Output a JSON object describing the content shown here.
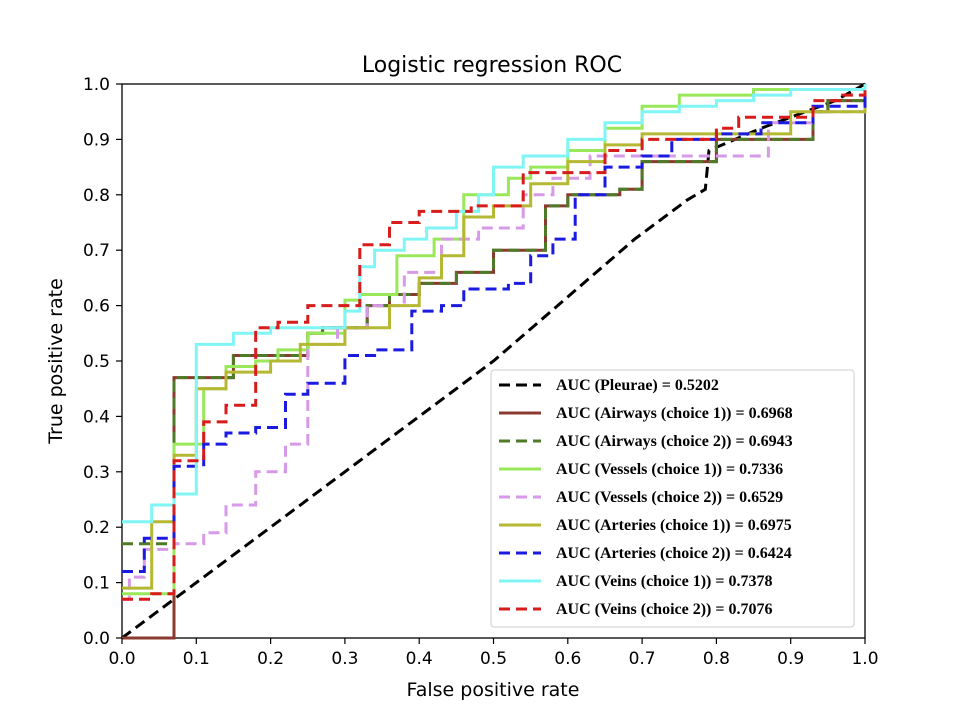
{
  "chart_data": {
    "type": "line",
    "title": "Logistic regression ROC",
    "xlabel": "False positive rate",
    "ylabel": "True positive rate",
    "xlim": [
      0.0,
      1.0
    ],
    "ylim": [
      0.0,
      1.0
    ],
    "xticks": [
      "0.0",
      "0.1",
      "0.2",
      "0.3",
      "0.4",
      "0.5",
      "0.6",
      "0.7",
      "0.8",
      "0.9",
      "1.0"
    ],
    "yticks": [
      "0.0",
      "0.1",
      "0.2",
      "0.3",
      "0.4",
      "0.5",
      "0.6",
      "0.7",
      "0.8",
      "0.9",
      "1.0"
    ],
    "grid": false,
    "legend_position": "lower-right",
    "series": [
      {
        "name": "AUC (Pleurae) = 0.5202",
        "color": "#000000",
        "dash": "dashed",
        "x": [
          0.0,
          0.5,
          0.69,
          0.75,
          0.76,
          0.785,
          0.79,
          0.86,
          0.92,
          0.96,
          1.0
        ],
        "y": [
          0.0,
          0.5,
          0.72,
          0.78,
          0.79,
          0.81,
          0.88,
          0.92,
          0.95,
          0.97,
          1.0
        ]
      },
      {
        "name": "AUC (Airways (choice 1)) = 0.6968",
        "color": "#8b3a2f",
        "dash": "solid",
        "x": [
          0.0,
          0.07,
          0.07,
          0.15,
          0.15,
          0.25,
          0.27,
          0.33,
          0.36,
          0.4,
          0.45,
          0.5,
          0.57,
          0.6,
          0.67,
          0.7,
          0.8,
          0.93,
          0.95,
          1.0
        ],
        "y": [
          0.0,
          0.0,
          0.47,
          0.48,
          0.51,
          0.55,
          0.56,
          0.6,
          0.62,
          0.64,
          0.66,
          0.7,
          0.78,
          0.8,
          0.81,
          0.86,
          0.9,
          0.95,
          0.97,
          1.0
        ],
        "drawstyle": "steps-post"
      },
      {
        "name": "AUC (Airways (choice 2)) = 0.6943",
        "color": "#4f7a28",
        "dash": "dashed",
        "x": [
          0.0,
          0.07,
          0.07,
          0.15,
          0.15,
          0.25,
          0.27,
          0.33,
          0.36,
          0.4,
          0.45,
          0.5,
          0.57,
          0.6,
          0.67,
          0.7,
          0.8,
          0.93,
          0.95,
          1.0
        ],
        "y": [
          0.17,
          0.17,
          0.47,
          0.48,
          0.51,
          0.55,
          0.56,
          0.6,
          0.62,
          0.64,
          0.66,
          0.7,
          0.78,
          0.8,
          0.81,
          0.86,
          0.9,
          0.95,
          0.97,
          1.0
        ],
        "drawstyle": "steps-post"
      },
      {
        "name": "AUC (Vessels (choice 1)) = 0.7336",
        "color": "#99e85a",
        "dash": "solid",
        "x": [
          0.0,
          0.04,
          0.07,
          0.07,
          0.11,
          0.11,
          0.14,
          0.18,
          0.21,
          0.25,
          0.3,
          0.32,
          0.37,
          0.42,
          0.46,
          0.52,
          0.55,
          0.6,
          0.65,
          0.7,
          0.75,
          0.8,
          0.85,
          0.9,
          1.0
        ],
        "y": [
          0.08,
          0.08,
          0.18,
          0.35,
          0.42,
          0.45,
          0.49,
          0.5,
          0.52,
          0.55,
          0.61,
          0.62,
          0.69,
          0.72,
          0.8,
          0.83,
          0.85,
          0.88,
          0.92,
          0.96,
          0.98,
          0.98,
          0.99,
          0.99,
          1.0
        ],
        "drawstyle": "steps-post"
      },
      {
        "name": "AUC (Vessels (choice 2)) = 0.6529",
        "color": "#d79ae8",
        "dash": "dashed",
        "x": [
          0.0,
          0.01,
          0.03,
          0.07,
          0.07,
          0.11,
          0.14,
          0.18,
          0.22,
          0.25,
          0.29,
          0.33,
          0.38,
          0.43,
          0.48,
          0.54,
          0.58,
          0.63,
          0.7,
          0.8,
          0.87,
          0.93,
          1.0
        ],
        "y": [
          0.07,
          0.11,
          0.16,
          0.16,
          0.17,
          0.19,
          0.24,
          0.3,
          0.35,
          0.53,
          0.56,
          0.6,
          0.66,
          0.72,
          0.74,
          0.8,
          0.83,
          0.87,
          0.87,
          0.87,
          0.93,
          0.95,
          1.0
        ],
        "drawstyle": "steps-post"
      },
      {
        "name": "AUC (Arteries (choice 1)) = 0.6975",
        "color": "#b5b832",
        "dash": "solid",
        "x": [
          0.0,
          0.04,
          0.07,
          0.07,
          0.1,
          0.14,
          0.2,
          0.24,
          0.3,
          0.36,
          0.4,
          0.43,
          0.46,
          0.5,
          0.55,
          0.6,
          0.65,
          0.7,
          0.8,
          0.9,
          1.0
        ],
        "y": [
          0.09,
          0.21,
          0.21,
          0.33,
          0.45,
          0.48,
          0.5,
          0.53,
          0.56,
          0.6,
          0.65,
          0.69,
          0.76,
          0.78,
          0.82,
          0.86,
          0.89,
          0.91,
          0.91,
          0.95,
          1.0
        ],
        "drawstyle": "steps-post"
      },
      {
        "name": "AUC (Arteries (choice 2)) = 0.6424",
        "color": "#1a1ae0",
        "dash": "dashed",
        "x": [
          0.0,
          0.03,
          0.07,
          0.11,
          0.14,
          0.18,
          0.22,
          0.25,
          0.3,
          0.34,
          0.39,
          0.43,
          0.46,
          0.52,
          0.55,
          0.58,
          0.61,
          0.65,
          0.7,
          0.74,
          0.8,
          0.86,
          0.93,
          1.0
        ],
        "y": [
          0.12,
          0.18,
          0.31,
          0.35,
          0.37,
          0.38,
          0.44,
          0.46,
          0.51,
          0.52,
          0.59,
          0.6,
          0.63,
          0.64,
          0.69,
          0.72,
          0.8,
          0.85,
          0.87,
          0.9,
          0.91,
          0.93,
          0.96,
          0.98
        ],
        "drawstyle": "steps-post"
      },
      {
        "name": "AUC (Veins (choice 1)) = 0.7378",
        "color": "#7ff5f5",
        "dash": "solid",
        "x": [
          0.0,
          0.04,
          0.07,
          0.1,
          0.1,
          0.15,
          0.2,
          0.25,
          0.3,
          0.32,
          0.34,
          0.38,
          0.41,
          0.45,
          0.48,
          0.5,
          0.54,
          0.6,
          0.65,
          0.7,
          0.75,
          0.8,
          0.85,
          0.9,
          1.0
        ],
        "y": [
          0.21,
          0.24,
          0.26,
          0.26,
          0.53,
          0.55,
          0.56,
          0.56,
          0.59,
          0.67,
          0.7,
          0.72,
          0.74,
          0.77,
          0.8,
          0.85,
          0.87,
          0.9,
          0.93,
          0.95,
          0.96,
          0.97,
          0.98,
          0.99,
          1.0
        ],
        "drawstyle": "steps-post"
      },
      {
        "name": "AUC (Veins (choice 2)) = 0.7076",
        "color": "#d81b1b",
        "dash": "dashed",
        "x": [
          0.0,
          0.04,
          0.07,
          0.07,
          0.11,
          0.14,
          0.18,
          0.21,
          0.25,
          0.32,
          0.32,
          0.36,
          0.4,
          0.47,
          0.54,
          0.65,
          0.7,
          0.8,
          0.83,
          0.93,
          0.97,
          1.0
        ],
        "y": [
          0.07,
          0.08,
          0.08,
          0.32,
          0.39,
          0.42,
          0.56,
          0.57,
          0.6,
          0.6,
          0.71,
          0.75,
          0.77,
          0.78,
          0.84,
          0.88,
          0.9,
          0.92,
          0.94,
          0.97,
          0.98,
          0.99
        ],
        "drawstyle": "steps-post"
      }
    ]
  }
}
